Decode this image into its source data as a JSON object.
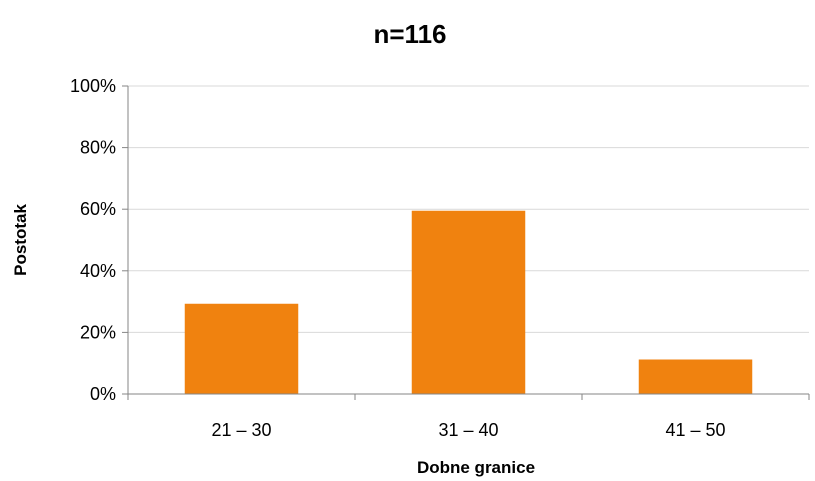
{
  "chart_data": {
    "type": "bar",
    "title": "n=116",
    "xlabel": "Dobne granice",
    "ylabel": "Postotak",
    "categories": [
      "21 – 30",
      "31 – 40",
      "41 – 50"
    ],
    "values": [
      29.3,
      59.5,
      11.2
    ],
    "ylim": [
      0,
      100
    ],
    "yticks": [
      0,
      20,
      40,
      60,
      80,
      100
    ],
    "ytick_labels": [
      "0%",
      "20%",
      "40%",
      "60%",
      "80%",
      "100%"
    ],
    "grid": true,
    "legend": "none",
    "bar_color": "#f0820f",
    "grid_color": "#d9d9d9",
    "axis_color": "#868686"
  }
}
